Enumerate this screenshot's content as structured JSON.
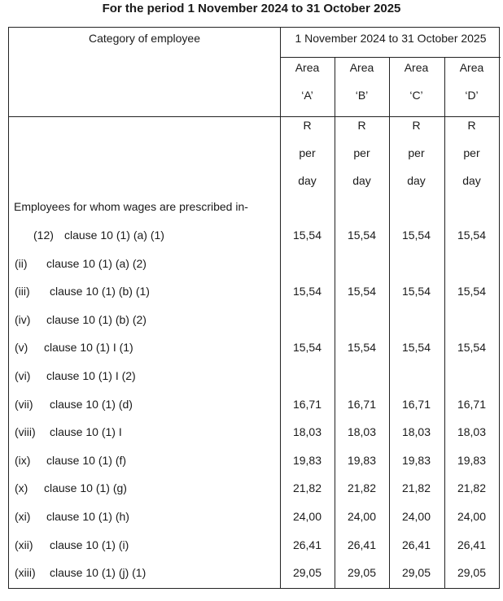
{
  "title": "For the period 1 November 2024 to 31 October 2025",
  "header": {
    "category": "Category of employee",
    "period": "1 November 2024 to 31 October 2025",
    "areas": [
      {
        "line1": "Area",
        "line2": "‘A’"
      },
      {
        "line1": "Area",
        "line2": "‘B’"
      },
      {
        "line1": "Area",
        "line2": "‘C’"
      },
      {
        "line1": "Area",
        "line2": "‘D’"
      }
    ],
    "unit": {
      "l1": "R",
      "l2": "per",
      "l3": "day"
    }
  },
  "section_label": "Employees for whom wages are prescribed in-",
  "rows": [
    {
      "num": "(12)",
      "clause": "clause 10 (1) (a) (1)",
      "values": [
        "15,54",
        "15,54",
        "15,54",
        "15,54"
      ]
    },
    {
      "num": "(ii)",
      "clause": "clause 10 (1) (a) (2)",
      "values": [
        "",
        "",
        "",
        ""
      ]
    },
    {
      "num": "(iii)",
      "clause": "clause 10 (1) (b) (1)",
      "values": [
        "15,54",
        "15,54",
        "15,54",
        "15,54"
      ]
    },
    {
      "num": "(iv)",
      "clause": "clause 10 (1) (b) (2)",
      "values": [
        "",
        "",
        "",
        ""
      ]
    },
    {
      "num": "(v)",
      "clause": "clause 10 (1) I (1)",
      "values": [
        "15,54",
        "15,54",
        "15,54",
        "15,54"
      ]
    },
    {
      "num": "(vi)",
      "clause": "clause 10 (1) I (2)",
      "values": [
        "",
        "",
        "",
        ""
      ]
    },
    {
      "num": "(vii)",
      "clause": "clause 10 (1) (d)",
      "values": [
        "16,71",
        "16,71",
        "16,71",
        "16,71"
      ]
    },
    {
      "num": "(viii)",
      "clause": "clause 10 (1) I",
      "values": [
        "18,03",
        "18,03",
        "18,03",
        "18,03"
      ]
    },
    {
      "num": "(ix)",
      "clause": "clause 10 (1) (f)",
      "values": [
        "19,83",
        "19,83",
        "19,83",
        "19,83"
      ]
    },
    {
      "num": "(x)",
      "clause": "clause 10 (1) (g)",
      "values": [
        "21,82",
        "21,82",
        "21,82",
        "21,82"
      ]
    },
    {
      "num": "(xi)",
      "clause": "clause 10 (1) (h)",
      "values": [
        "24,00",
        "24,00",
        "24,00",
        "24,00"
      ]
    },
    {
      "num": "(xii)",
      "clause": "clause 10 (1) (i)",
      "values": [
        "26,41",
        "26,41",
        "26,41",
        "26,41"
      ]
    },
    {
      "num": "(xiii)",
      "clause": "clause 10 (1) (j) (1)",
      "values": [
        "29,05",
        "29,05",
        "29,05",
        "29,05"
      ]
    }
  ]
}
